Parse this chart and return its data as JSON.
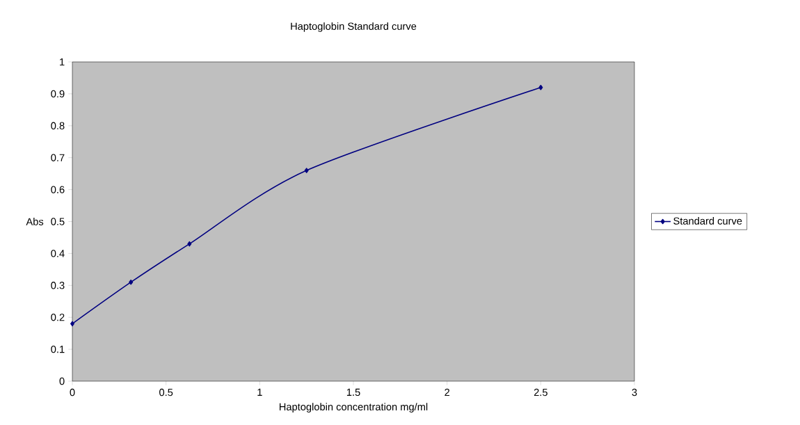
{
  "chart_data": {
    "type": "line",
    "title": "Haptoglobin Standard curve",
    "xlabel": "Haptoglobin concentration mg/ml",
    "ylabel": "Abs",
    "x": [
      0,
      0.3125,
      0.625,
      1.25,
      2.5
    ],
    "series": [
      {
        "name": "Standard curve",
        "color": "#000080",
        "values": [
          0.18,
          0.31,
          0.43,
          0.66,
          0.92
        ]
      }
    ],
    "xlim": [
      0,
      3
    ],
    "xticks": [
      0,
      0.5,
      1,
      1.5,
      2,
      2.5,
      3
    ],
    "ylim": [
      0,
      1
    ],
    "yticks": [
      0,
      0.1,
      0.2,
      0.3,
      0.4,
      0.5,
      0.6,
      0.7,
      0.8,
      0.9,
      1
    ],
    "grid": false,
    "legend": "right",
    "marker": "diamond",
    "line_style": "solid"
  }
}
